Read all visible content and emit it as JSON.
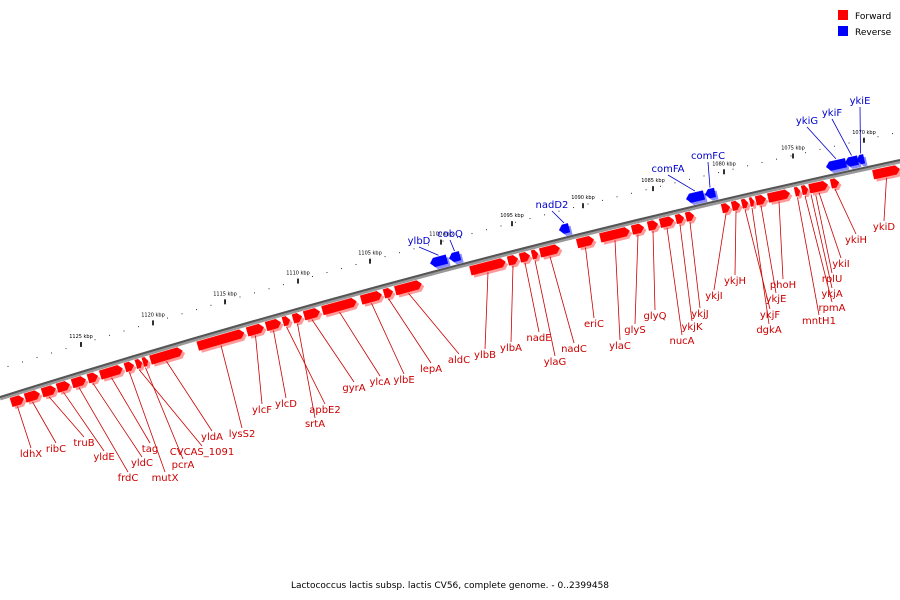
{
  "legend": {
    "forward": {
      "label": "Forward",
      "color": "#ff0000"
    },
    "reverse": {
      "label": "Reverse",
      "color": "#0000ff"
    }
  },
  "caption": "Lactococcus lactis subsp. lactis CV56, complete genome. - 0..2399458",
  "ticks": [
    "1125 kbp",
    "1120 kbp",
    "1115 kbp",
    "1110 kbp",
    "1105 kbp",
    "1100 kbp",
    "1095 kbp",
    "1090 kbp",
    "1085 kbp",
    "1080 kbp",
    "1075 kbp",
    "1070 kbp"
  ],
  "genes": [
    {
      "name": "ldhX",
      "strand": "forward"
    },
    {
      "name": "ribC",
      "strand": "forward"
    },
    {
      "name": "truB",
      "strand": "forward"
    },
    {
      "name": "yldE",
      "strand": "forward"
    },
    {
      "name": "frdC",
      "strand": "forward"
    },
    {
      "name": "yldC",
      "strand": "forward"
    },
    {
      "name": "tag",
      "strand": "forward"
    },
    {
      "name": "mutX",
      "strand": "forward"
    },
    {
      "name": "CVCAS_1091",
      "strand": "forward"
    },
    {
      "name": "pcrA",
      "strand": "forward"
    },
    {
      "name": "yldA",
      "strand": "forward"
    },
    {
      "name": "lysS2",
      "strand": "forward"
    },
    {
      "name": "ylcF",
      "strand": "forward"
    },
    {
      "name": "ylcD",
      "strand": "forward"
    },
    {
      "name": "apbE2",
      "strand": "forward"
    },
    {
      "name": "srtA",
      "strand": "forward"
    },
    {
      "name": "gyrA",
      "strand": "forward"
    },
    {
      "name": "ylcA",
      "strand": "forward"
    },
    {
      "name": "ylbE",
      "strand": "forward"
    },
    {
      "name": "lepA",
      "strand": "forward"
    },
    {
      "name": "aldC",
      "strand": "forward"
    },
    {
      "name": "ylbD",
      "strand": "reverse"
    },
    {
      "name": "cobQ",
      "strand": "reverse"
    },
    {
      "name": "ylbB",
      "strand": "forward"
    },
    {
      "name": "ylbA",
      "strand": "forward"
    },
    {
      "name": "nadE",
      "strand": "forward"
    },
    {
      "name": "ylaG",
      "strand": "forward"
    },
    {
      "name": "nadD2",
      "strand": "reverse"
    },
    {
      "name": "nadC",
      "strand": "forward"
    },
    {
      "name": "eriC",
      "strand": "forward"
    },
    {
      "name": "ylaC",
      "strand": "forward"
    },
    {
      "name": "glyS",
      "strand": "forward"
    },
    {
      "name": "glyQ",
      "strand": "forward"
    },
    {
      "name": "nucA",
      "strand": "forward"
    },
    {
      "name": "comFA",
      "strand": "reverse"
    },
    {
      "name": "comFC",
      "strand": "reverse"
    },
    {
      "name": "ykjK",
      "strand": "forward"
    },
    {
      "name": "ykjJ",
      "strand": "forward"
    },
    {
      "name": "ykjI",
      "strand": "forward"
    },
    {
      "name": "ykjH",
      "strand": "forward"
    },
    {
      "name": "ykjF",
      "strand": "forward"
    },
    {
      "name": "dgkA",
      "strand": "forward"
    },
    {
      "name": "ykjE",
      "strand": "forward"
    },
    {
      "name": "phoH",
      "strand": "forward"
    },
    {
      "name": "mntH1",
      "strand": "forward"
    },
    {
      "name": "rpmA",
      "strand": "forward"
    },
    {
      "name": "ykjA",
      "strand": "forward"
    },
    {
      "name": "rplU",
      "strand": "forward"
    },
    {
      "name": "ykiI",
      "strand": "forward"
    },
    {
      "name": "ykiG",
      "strand": "reverse"
    },
    {
      "name": "ykiF",
      "strand": "reverse"
    },
    {
      "name": "ykiE",
      "strand": "reverse"
    },
    {
      "name": "ykiH",
      "strand": "forward"
    },
    {
      "name": "ykiD",
      "strand": "forward"
    }
  ]
}
